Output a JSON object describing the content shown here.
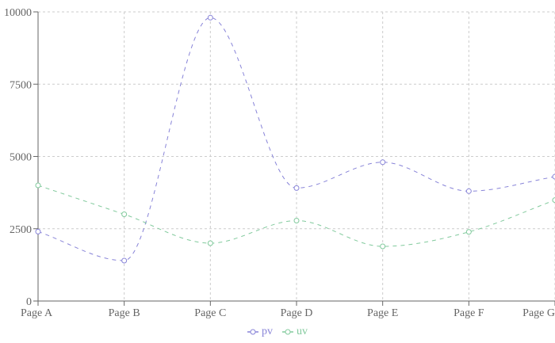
{
  "chart_data": {
    "type": "line",
    "categories": [
      "Page A",
      "Page B",
      "Page C",
      "Page D",
      "Page E",
      "Page F",
      "Page G"
    ],
    "series": [
      {
        "name": "pv",
        "color": "#8884d8",
        "values": [
          2400,
          1398,
          9800,
          3908,
          4800,
          3800,
          4300
        ]
      },
      {
        "name": "uv",
        "color": "#82ca9d",
        "values": [
          4000,
          3000,
          2000,
          2780,
          1890,
          2390,
          3490
        ]
      }
    ],
    "yticks": [
      0,
      2500,
      5000,
      7500,
      10000
    ],
    "ylim": [
      0,
      10000
    ],
    "grid": true,
    "line_style": "dashed",
    "legend_position": "bottom"
  }
}
